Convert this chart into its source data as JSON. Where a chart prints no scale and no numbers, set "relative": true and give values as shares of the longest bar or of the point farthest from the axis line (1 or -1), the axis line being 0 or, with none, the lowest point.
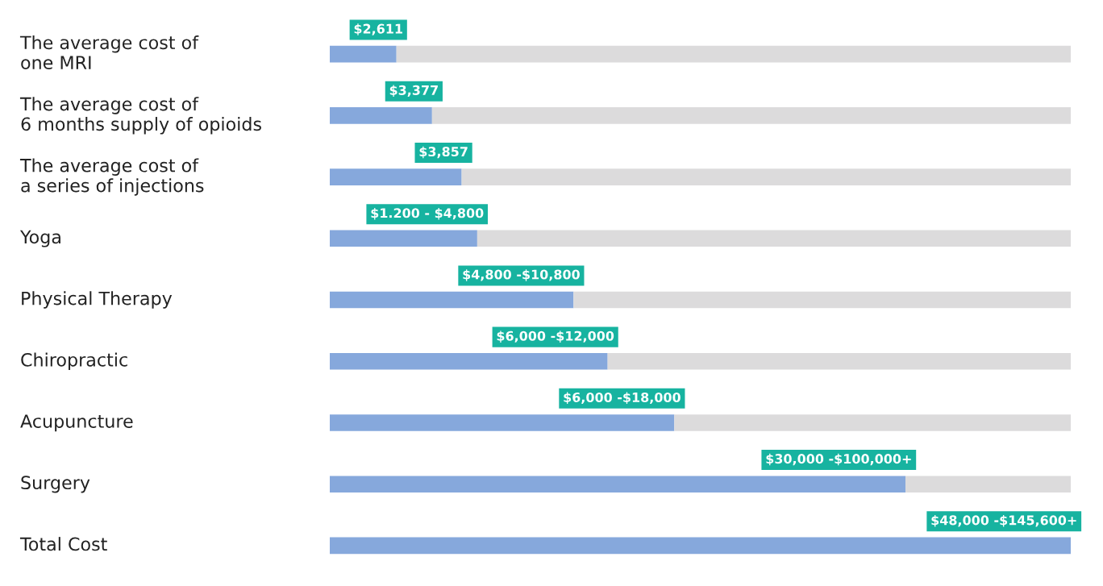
{
  "chart_data": {
    "type": "bar",
    "orientation": "horizontal",
    "relative": true,
    "stacked": true,
    "categories": [
      "The average cost of\none MRI",
      "The average cost of\n6 months supply of opioids",
      "The average cost of\na series of injections",
      "Yoga",
      "Physical Therapy",
      "Chiropractic",
      "Acupuncture",
      "Surgery",
      "Total Cost"
    ],
    "series": [
      {
        "color": "#86a8dc",
        "values": [
          0.09,
          0.138,
          0.178,
          0.199,
          0.329,
          0.375,
          0.465,
          0.777,
          1.0
        ]
      },
      {
        "color": "#dcdbdc",
        "values": [
          0.91,
          0.862,
          0.822,
          0.801,
          0.671,
          0.625,
          0.535,
          0.223,
          0.0
        ]
      }
    ],
    "annotations": [
      {
        "text": "$2,611",
        "x": 0.09,
        "y": "The average cost of\none MRI"
      },
      {
        "text": "$3,377",
        "x": 0.138,
        "y": "The average cost of\n6 months supply of opioids"
      },
      {
        "text": "$3,857",
        "x": 0.178,
        "y": "The average cost of\na series of injections"
      },
      {
        "text": "$1.200 - $4,800",
        "x": 0.199,
        "y": "Yoga"
      },
      {
        "text": "$4,800 -$10,800",
        "x": 0.329,
        "y": "Physical Therapy"
      },
      {
        "text": "$6,000 -$12,000",
        "x": 0.375,
        "y": "Chiropractic"
      },
      {
        "text": "$6,000 -$18,000",
        "x": 0.465,
        "y": "Acupuncture"
      },
      {
        "text": "$30,000 -$100,000+",
        "x": 0.777,
        "y": "Surgery"
      },
      {
        "text": "$48,000 -$145,600+",
        "x": 1.0,
        "y": "Total Cost"
      }
    ],
    "grid": false
  }
}
